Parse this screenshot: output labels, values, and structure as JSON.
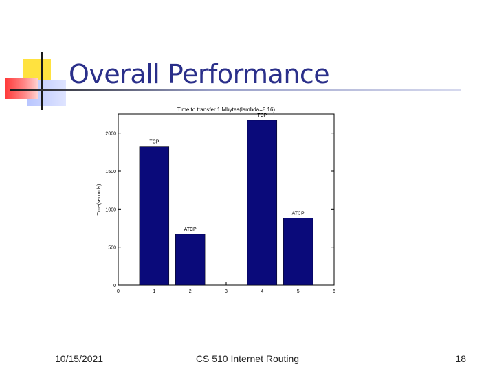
{
  "slide": {
    "title": "Overall Performance",
    "footer_date": "10/15/2021",
    "footer_course": "CS 510 Internet Routing",
    "page_number": "18"
  },
  "colors": {
    "title": "#2a2f8a",
    "bar": "#0a0a7a",
    "accent_yellow": "#ffe23f",
    "accent_red": "#ff3b3b",
    "accent_blue": "#b9c6ff"
  },
  "chart_data": {
    "type": "bar",
    "title": "Time to transfer 1 Mbytes(lambda=8.16)",
    "ylabel": "Time(seconds)",
    "xlabel": "",
    "xlim": [
      0,
      6
    ],
    "ylim": [
      0,
      2000
    ],
    "xticks": [
      0,
      1,
      2,
      3,
      4,
      5,
      6
    ],
    "yticks": [
      0,
      500,
      1000,
      1500,
      2000
    ],
    "bars": [
      {
        "x": 1,
        "value": 1820,
        "label": "TCP"
      },
      {
        "x": 2,
        "value": 670,
        "label": "ATCP"
      },
      {
        "x": 4,
        "value": 2170,
        "label": "TCP"
      },
      {
        "x": 5,
        "value": 880,
        "label": "ATCP"
      }
    ]
  }
}
